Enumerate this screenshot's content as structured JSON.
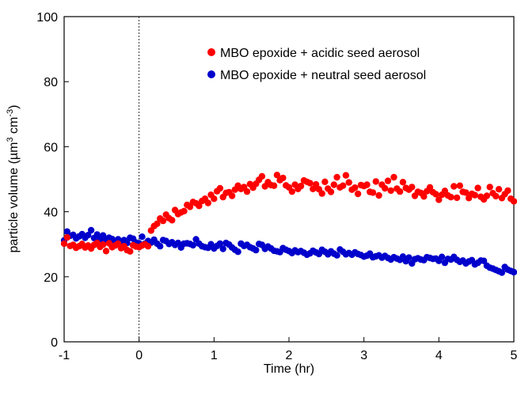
{
  "chart_data": {
    "type": "scatter",
    "xlabel": "Time (hr)",
    "ylabel_main": "particle volume (µm",
    "ylabel_sup1": "3",
    "ylabel_mid": " cm",
    "ylabel_sup2": "-3",
    "ylabel_end": ")",
    "xlim": [
      -1,
      5
    ],
    "ylim": [
      0,
      100
    ],
    "xticks": [
      -1,
      0,
      1,
      2,
      3,
      4,
      5
    ],
    "yticks": [
      0,
      20,
      40,
      60,
      80,
      100
    ],
    "vline_x": 0,
    "legend_position": "top-right",
    "series": [
      {
        "name": "MBO epoxide + acidic seed aerosol",
        "color": "#ff0000",
        "x": [
          -1.0,
          -0.96,
          -0.92,
          -0.88,
          -0.84,
          -0.8,
          -0.76,
          -0.72,
          -0.68,
          -0.64,
          -0.6,
          -0.56,
          -0.52,
          -0.48,
          -0.44,
          -0.4,
          -0.36,
          -0.32,
          -0.28,
          -0.24,
          -0.2,
          -0.16,
          -0.12,
          -0.08,
          -0.04,
          0.0,
          0.04,
          0.08,
          0.12,
          0.16,
          0.2,
          0.24,
          0.28,
          0.32,
          0.36,
          0.4,
          0.44,
          0.48,
          0.52,
          0.56,
          0.6,
          0.64,
          0.68,
          0.72,
          0.76,
          0.8,
          0.84,
          0.88,
          0.92,
          0.96,
          1.0,
          1.04,
          1.08,
          1.12,
          1.16,
          1.2,
          1.24,
          1.28,
          1.32,
          1.36,
          1.4,
          1.44,
          1.48,
          1.52,
          1.56,
          1.6,
          1.64,
          1.68,
          1.72,
          1.76,
          1.8,
          1.84,
          1.88,
          1.92,
          1.96,
          2.0,
          2.04,
          2.08,
          2.12,
          2.16,
          2.2,
          2.24,
          2.28,
          2.32,
          2.36,
          2.4,
          2.44,
          2.48,
          2.52,
          2.56,
          2.6,
          2.64,
          2.68,
          2.72,
          2.76,
          2.8,
          2.84,
          2.88,
          2.92,
          2.96,
          3.0,
          3.04,
          3.08,
          3.12,
          3.16,
          3.2,
          3.24,
          3.28,
          3.32,
          3.36,
          3.4,
          3.44,
          3.48,
          3.52,
          3.56,
          3.6,
          3.64,
          3.68,
          3.72,
          3.76,
          3.8,
          3.84,
          3.88,
          3.92,
          3.96,
          4.0,
          4.04,
          4.08,
          4.12,
          4.16,
          4.2,
          4.24,
          4.28,
          4.32,
          4.36,
          4.4,
          4.44,
          4.48,
          4.52,
          4.56,
          4.6,
          4.64,
          4.68,
          4.72,
          4.76,
          4.8,
          4.84,
          4.88,
          4.92,
          4.96,
          5.0
        ],
        "y": [
          30.2,
          32.1,
          29.5,
          29.8,
          28.9,
          29.4,
          30.1,
          29.0,
          29.6,
          28.7,
          29.8,
          30.4,
          29.2,
          29.9,
          27.9,
          30.3,
          29.1,
          29.6,
          30.2,
          28.8,
          29.4,
          28.2,
          27.8,
          29.7,
          29.3,
          29.1,
          29.6,
          30.0,
          29.4,
          34.2,
          35.6,
          36.3,
          37.9,
          37.2,
          39.1,
          38.0,
          37.4,
          40.5,
          39.3,
          39.8,
          40.2,
          42.1,
          41.5,
          43.0,
          42.6,
          41.8,
          43.3,
          44.0,
          42.7,
          45.2,
          44.0,
          46.3,
          47.2,
          44.5,
          45.8,
          46.0,
          44.9,
          46.8,
          48.0,
          47.0,
          47.6,
          46.2,
          48.5,
          47.4,
          48.6,
          49.8,
          50.9,
          47.8,
          49.1,
          48.2,
          48.0,
          51.3,
          49.7,
          50.4,
          48.1,
          47.5,
          46.2,
          48.3,
          47.0,
          47.9,
          49.6,
          49.2,
          48.8,
          47.0,
          48.4,
          46.9,
          45.6,
          49.2,
          47.1,
          46.1,
          48.3,
          50.6,
          47.5,
          48.0,
          51.2,
          49.0,
          46.8,
          47.4,
          45.5,
          48.2,
          47.9,
          48.3,
          46.1,
          45.9,
          49.3,
          45.0,
          48.3,
          47.2,
          49.5,
          46.5,
          50.6,
          47.1,
          46.2,
          49.1,
          47.3,
          46.8,
          47.6,
          44.9,
          46.1,
          45.8,
          44.7,
          46.3,
          47.5,
          46.0,
          45.4,
          43.7,
          45.2,
          46.4,
          45.0,
          44.5,
          47.8,
          44.3,
          48.0,
          46.1,
          45.9,
          44.2,
          45.5,
          45.1,
          47.3,
          44.6,
          43.8,
          44.9,
          47.6,
          45.7,
          44.8,
          46.9,
          44.2,
          45.4,
          46.5,
          44.0,
          43.2
        ]
      },
      {
        "name": "MBO epoxide + neutral seed aerosol",
        "color": "#0000cc",
        "x": [
          -1.0,
          -0.96,
          -0.92,
          -0.88,
          -0.84,
          -0.8,
          -0.76,
          -0.72,
          -0.68,
          -0.64,
          -0.6,
          -0.56,
          -0.52,
          -0.48,
          -0.44,
          -0.4,
          -0.36,
          -0.32,
          -0.28,
          -0.24,
          -0.2,
          -0.16,
          -0.12,
          -0.08,
          -0.04,
          0.0,
          0.04,
          0.08,
          0.12,
          0.16,
          0.2,
          0.24,
          0.28,
          0.32,
          0.36,
          0.4,
          0.44,
          0.48,
          0.52,
          0.56,
          0.6,
          0.64,
          0.68,
          0.72,
          0.76,
          0.8,
          0.84,
          0.88,
          0.92,
          0.96,
          1.0,
          1.04,
          1.08,
          1.12,
          1.16,
          1.2,
          1.24,
          1.28,
          1.32,
          1.36,
          1.4,
          1.44,
          1.48,
          1.52,
          1.56,
          1.6,
          1.64,
          1.68,
          1.72,
          1.76,
          1.8,
          1.84,
          1.88,
          1.92,
          1.96,
          2.0,
          2.04,
          2.08,
          2.12,
          2.16,
          2.2,
          2.24,
          2.28,
          2.32,
          2.36,
          2.4,
          2.44,
          2.48,
          2.52,
          2.56,
          2.6,
          2.64,
          2.68,
          2.72,
          2.76,
          2.8,
          2.84,
          2.88,
          2.92,
          2.96,
          3.0,
          3.04,
          3.08,
          3.12,
          3.16,
          3.2,
          3.24,
          3.28,
          3.32,
          3.36,
          3.4,
          3.44,
          3.48,
          3.52,
          3.56,
          3.6,
          3.64,
          3.68,
          3.72,
          3.76,
          3.8,
          3.84,
          3.88,
          3.92,
          3.96,
          4.0,
          4.04,
          4.08,
          4.12,
          4.16,
          4.2,
          4.24,
          4.28,
          4.32,
          4.36,
          4.4,
          4.44,
          4.48,
          4.52,
          4.56,
          4.6,
          4.64,
          4.68,
          4.72,
          4.76,
          4.8,
          4.84,
          4.88,
          4.92,
          4.96,
          5.0
        ],
        "y": [
          31.2,
          33.9,
          32.6,
          32.9,
          31.8,
          32.4,
          33.1,
          32.0,
          32.8,
          34.3,
          31.9,
          33.0,
          31.5,
          32.7,
          31.4,
          32.0,
          31.6,
          30.9,
          31.5,
          30.7,
          31.3,
          30.4,
          32.0,
          31.7,
          30.5,
          30.3,
          32.3,
          30.2,
          31.0,
          30.5,
          31.4,
          30.2,
          29.4,
          31.3,
          31.0,
          30.1,
          30.6,
          29.8,
          30.4,
          29.0,
          30.2,
          30.3,
          30.1,
          29.7,
          31.5,
          30.2,
          29.4,
          29.1,
          28.9,
          30.0,
          28.7,
          29.5,
          30.2,
          28.6,
          30.4,
          29.9,
          29.0,
          28.3,
          27.7,
          30.2,
          29.5,
          29.8,
          29.1,
          28.7,
          28.2,
          30.1,
          29.8,
          28.6,
          29.3,
          28.7,
          28.0,
          27.8,
          27.6,
          28.8,
          28.3,
          27.9,
          27.3,
          28.1,
          27.6,
          27.9,
          27.4,
          26.8,
          27.2,
          28.0,
          27.5,
          27.0,
          28.3,
          27.7,
          26.9,
          27.8,
          27.1,
          26.6,
          28.4,
          27.7,
          26.9,
          27.3,
          26.8,
          27.5,
          27.0,
          26.7,
          26.2,
          26.5,
          27.1,
          26.0,
          26.3,
          26.6,
          25.9,
          26.4,
          25.8,
          25.3,
          26.0,
          25.6,
          25.2,
          26.2,
          24.8,
          25.9,
          24.1,
          25.4,
          25.7,
          25.3,
          25.1,
          26.0,
          25.8,
          25.5,
          25.6,
          24.9,
          26.1,
          24.3,
          25.5,
          25.3,
          26.1,
          25.2,
          24.6,
          25.0,
          24.1,
          24.7,
          25.1,
          23.8,
          24.3,
          25.0,
          24.9,
          23.4,
          22.8,
          22.5,
          22.1,
          21.7,
          21.3,
          23.0,
          22.2,
          21.8,
          21.4
        ]
      }
    ]
  }
}
